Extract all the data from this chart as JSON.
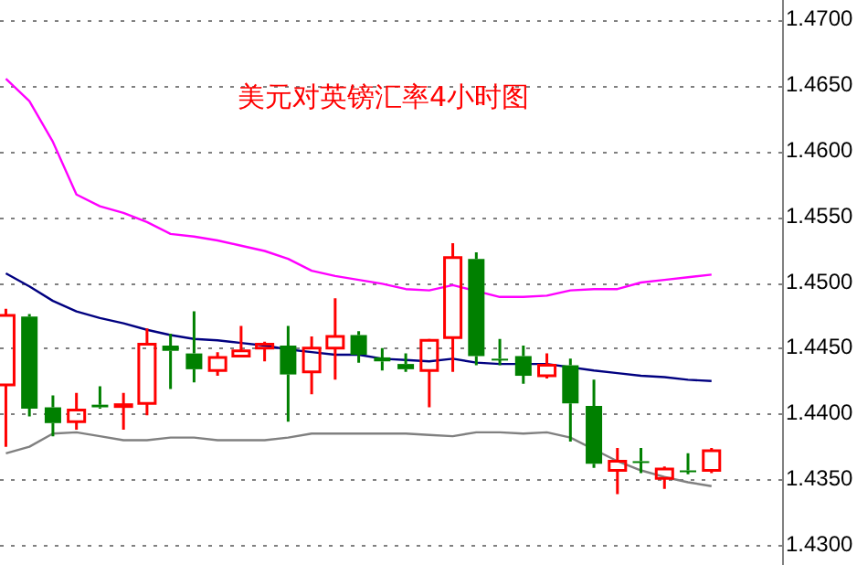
{
  "chart_data": {
    "type": "candlestick",
    "title": "美元对英镑汇率4小时图",
    "categories": [
      null,
      null,
      null,
      null,
      null,
      null,
      null,
      null,
      null,
      null,
      null,
      null,
      null,
      null,
      null,
      null,
      null,
      null,
      null,
      null,
      null,
      null,
      null,
      null,
      null,
      null,
      null,
      null,
      null,
      null,
      null
    ],
    "ohlc": [
      [
        1.4422,
        1.448,
        1.4375,
        1.4475
      ],
      [
        1.4474,
        1.4476,
        1.4398,
        1.4404
      ],
      [
        1.4405,
        1.4414,
        1.4383,
        1.4393
      ],
      [
        1.4394,
        1.4416,
        1.4388,
        1.4403
      ],
      [
        1.4407,
        1.4421,
        1.4404,
        1.4405
      ],
      [
        1.4406,
        1.4416,
        1.4388,
        1.4407
      ],
      [
        1.4408,
        1.4465,
        1.4399,
        1.4453
      ],
      [
        1.4452,
        1.4461,
        1.4419,
        1.4448
      ],
      [
        1.4446,
        1.4478,
        1.4424,
        1.4434
      ],
      [
        1.4433,
        1.4447,
        1.4429,
        1.4443
      ],
      [
        1.4444,
        1.4467,
        1.4443,
        1.4448
      ],
      [
        1.445,
        1.4455,
        1.444,
        1.4453
      ],
      [
        1.4452,
        1.4467,
        1.4394,
        1.443
      ],
      [
        1.4432,
        1.4459,
        1.4415,
        1.445
      ],
      [
        1.445,
        1.4488,
        1.4426,
        1.4459
      ],
      [
        1.446,
        1.4463,
        1.4439,
        1.4445
      ],
      [
        1.4443,
        1.445,
        1.4433,
        1.444
      ],
      [
        1.4438,
        1.4446,
        1.4432,
        1.4434
      ],
      [
        1.4433,
        1.4457,
        1.4405,
        1.4456
      ],
      [
        1.4458,
        1.453,
        1.4432,
        1.4519
      ],
      [
        1.4518,
        1.4523,
        1.4437,
        1.4444
      ],
      [
        1.4442,
        1.4457,
        1.4437,
        1.4441
      ],
      [
        1.4444,
        1.4452,
        1.4423,
        1.4429
      ],
      [
        1.4429,
        1.4446,
        1.4427,
        1.4437
      ],
      [
        1.4437,
        1.4442,
        1.4379,
        1.4408
      ],
      [
        1.4406,
        1.4426,
        1.4359,
        1.4362
      ],
      [
        1.4357,
        1.4374,
        1.4339,
        1.4364
      ],
      [
        1.4364,
        1.4374,
        1.4355,
        1.4363
      ],
      [
        1.4351,
        1.436,
        1.4343,
        1.4358
      ],
      [
        1.4357,
        1.437,
        1.4354,
        1.4356
      ],
      [
        1.4357,
        1.4374,
        1.4355,
        1.4372
      ]
    ],
    "colors": [
      "#ff0000",
      "#008000",
      "#008000",
      "#ff0000",
      "#008000",
      "#ff0000",
      "#ff0000",
      "#008000",
      "#008000",
      "#ff0000",
      "#ff0000",
      "#ff0000",
      "#008000",
      "#ff0000",
      "#ff0000",
      "#008000",
      "#008000",
      "#008000",
      "#ff0000",
      "#ff0000",
      "#008000",
      "#008000",
      "#008000",
      "#ff0000",
      "#008000",
      "#008000",
      "#ff0000",
      "#008000",
      "#ff0000",
      "#008000",
      "#ff0000"
    ],
    "series": [
      {
        "type": "line",
        "color": "#ff00ff",
        "values": [
          1.4655,
          1.4638,
          1.4607,
          1.4567,
          1.4558,
          1.4553,
          1.4546,
          1.4537,
          1.4535,
          1.4532,
          1.4528,
          1.4524,
          1.4518,
          1.4509,
          1.4505,
          1.4502,
          1.4499,
          1.4495,
          1.4494,
          1.4498,
          null,
          1.4489,
          1.4489,
          1.449,
          1.4494,
          1.4495,
          1.4495,
          1.45,
          1.4502,
          1.4504,
          1.4506
        ]
      },
      {
        "type": "line",
        "color": "#000080",
        "values": [
          1.4507,
          1.4497,
          1.4486,
          1.4478,
          1.4473,
          1.4469,
          1.4464,
          1.446,
          1.4457,
          1.4456,
          1.4454,
          1.4452,
          1.4449,
          1.4447,
          1.4445,
          1.4445,
          1.4442,
          1.4441,
          1.444,
          1.4442,
          1.4439,
          1.4438,
          1.4438,
          1.4438,
          null,
          1.4433,
          1.4431,
          1.4429,
          1.4428,
          1.4426,
          1.4425
        ]
      },
      {
        "type": "line",
        "color": "#808080",
        "values": [
          1.437,
          1.4375,
          1.4385,
          1.4386,
          1.4383,
          1.438,
          1.438,
          1.4382,
          1.4382,
          1.438,
          1.438,
          1.438,
          1.4382,
          1.4385,
          1.4385,
          1.4385,
          1.4385,
          1.4385,
          1.4384,
          1.4383,
          1.4386,
          1.4386,
          1.4385,
          1.4386,
          1.4382,
          null,
          1.4364,
          1.4357,
          1.4352,
          1.4348,
          1.4345
        ]
      }
    ],
    "ylim": [
      1.4285,
      1.4715
    ],
    "yticks": [
      {
        "value": 1.43,
        "label": "1.4300"
      },
      {
        "value": 1.435,
        "label": "1.4350"
      },
      {
        "value": 1.44,
        "label": "1.4400"
      },
      {
        "value": 1.445,
        "label": "1.4450"
      },
      {
        "value": 1.45,
        "label": "1.4500"
      },
      {
        "value": 1.455,
        "label": "1.4550"
      },
      {
        "value": 1.46,
        "label": "1.4600"
      },
      {
        "value": 1.465,
        "label": "1.4650"
      },
      {
        "value": 1.47,
        "label": "1.4700"
      }
    ],
    "grid": "y"
  }
}
